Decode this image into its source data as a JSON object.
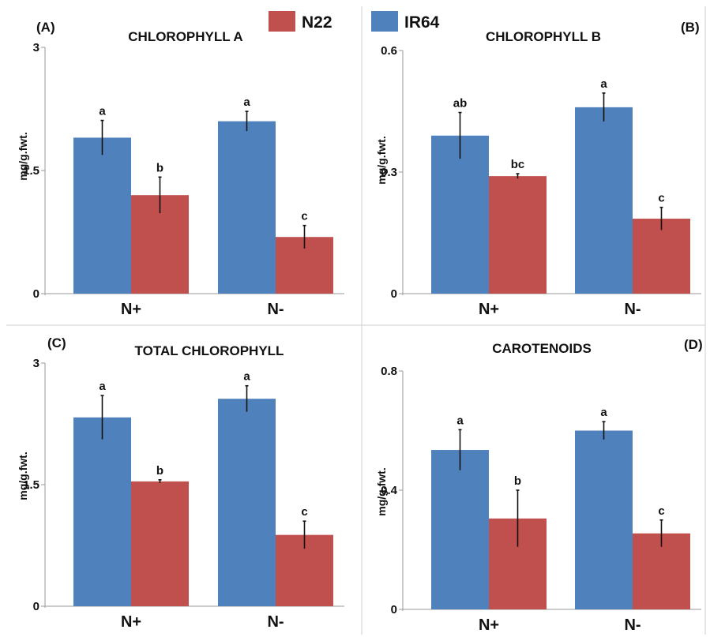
{
  "legend": {
    "items": [
      {
        "label": "N22",
        "color": "#c0504d"
      },
      {
        "label": "IR64",
        "color": "#4f81bd"
      }
    ]
  },
  "colors": {
    "IR64": "#4f81bd",
    "N22": "#c0504d",
    "error_bar": "#111111",
    "panel_border": "#cfcfcf"
  },
  "chart_data": [
    {
      "type": "bar",
      "panel_label": "(A)",
      "title": "CHLOROPHYLL A",
      "ylabel": "mg/g.fwt.",
      "categories": [
        "N+",
        "N-"
      ],
      "ylim": [
        0,
        3
      ],
      "yticks": [
        {
          "value": 0,
          "label": "0"
        },
        {
          "value": 1.5,
          "label": "1.5"
        },
        {
          "value": 3,
          "label": "3"
        }
      ],
      "series": [
        {
          "name": "IR64",
          "values": [
            1.9,
            2.1
          ],
          "errors": [
            0.21,
            0.12
          ],
          "letters": [
            "a",
            "a"
          ]
        },
        {
          "name": "N22",
          "values": [
            1.2,
            0.69
          ],
          "errors": [
            0.22,
            0.14
          ],
          "letters": [
            "b",
            "c"
          ]
        }
      ]
    },
    {
      "type": "bar",
      "panel_label": "(B)",
      "title": "CHLOROPHYLL B",
      "ylabel": "mg/g.fwt.",
      "categories": [
        "N+",
        "N-"
      ],
      "ylim": [
        0,
        0.6
      ],
      "yticks": [
        {
          "value": 0,
          "label": "0"
        },
        {
          "value": 0.3,
          "label": "0.3"
        },
        {
          "value": 0.6,
          "label": "0.6"
        }
      ],
      "series": [
        {
          "name": "IR64",
          "values": [
            0.39,
            0.46
          ],
          "errors": [
            0.057,
            0.035
          ],
          "letters": [
            "ab",
            "a"
          ]
        },
        {
          "name": "N22",
          "values": [
            0.29,
            0.185
          ],
          "errors": [
            0.006,
            0.028
          ],
          "letters": [
            "bc",
            "c"
          ]
        }
      ]
    },
    {
      "type": "bar",
      "panel_label": "(C)",
      "title": "TOTAL CHLOROPHYLL",
      "ylabel": "mg/g.fwt.",
      "categories": [
        "N+",
        "N-"
      ],
      "ylim": [
        0,
        3
      ],
      "yticks": [
        {
          "value": 0,
          "label": "0"
        },
        {
          "value": 1.5,
          "label": "1.5"
        },
        {
          "value": 3,
          "label": "3"
        }
      ],
      "series": [
        {
          "name": "IR64",
          "values": [
            2.33,
            2.56
          ],
          "errors": [
            0.27,
            0.16
          ],
          "letters": [
            "a",
            "a"
          ]
        },
        {
          "name": "N22",
          "values": [
            1.54,
            0.88
          ],
          "errors": [
            0.02,
            0.17
          ],
          "letters": [
            "b",
            "c"
          ]
        }
      ]
    },
    {
      "type": "bar",
      "panel_label": "(D)",
      "title": "CAROTENOIDS",
      "ylabel": "mg/g.fwt.",
      "categories": [
        "N+",
        "N-"
      ],
      "ylim": [
        0,
        0.8
      ],
      "yticks": [
        {
          "value": 0,
          "label": "0"
        },
        {
          "value": 0.4,
          "label": "0.4"
        },
        {
          "value": 0.8,
          "label": "0.8"
        }
      ],
      "series": [
        {
          "name": "IR64",
          "values": [
            0.535,
            0.6
          ],
          "errors": [
            0.068,
            0.03
          ],
          "letters": [
            "a",
            "a"
          ]
        },
        {
          "name": "N22",
          "values": [
            0.305,
            0.255
          ],
          "errors": [
            0.095,
            0.045
          ],
          "letters": [
            "b",
            "c"
          ]
        }
      ]
    }
  ]
}
